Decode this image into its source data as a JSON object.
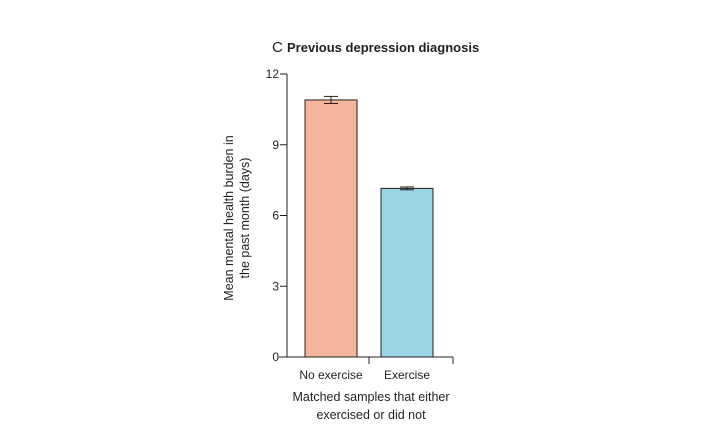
{
  "chart_data": {
    "type": "bar",
    "panel": "C",
    "title": "Previous depression diagnosis",
    "categories": [
      "No exercise",
      "Exercise"
    ],
    "values": [
      10.9,
      7.15
    ],
    "error": [
      0.15,
      0.06
    ],
    "bar_colors": [
      "#f6b49a",
      "#9bd4e4"
    ],
    "ylabel_lines": [
      "Mean mental health burden in",
      "the past month (days)"
    ],
    "xlabel_lines": [
      "Matched samples that either",
      "exercised or did not"
    ],
    "ylim": [
      0,
      12
    ],
    "yticks": [
      0,
      3,
      6,
      9,
      12
    ],
    "grid": false,
    "legend": "none"
  }
}
